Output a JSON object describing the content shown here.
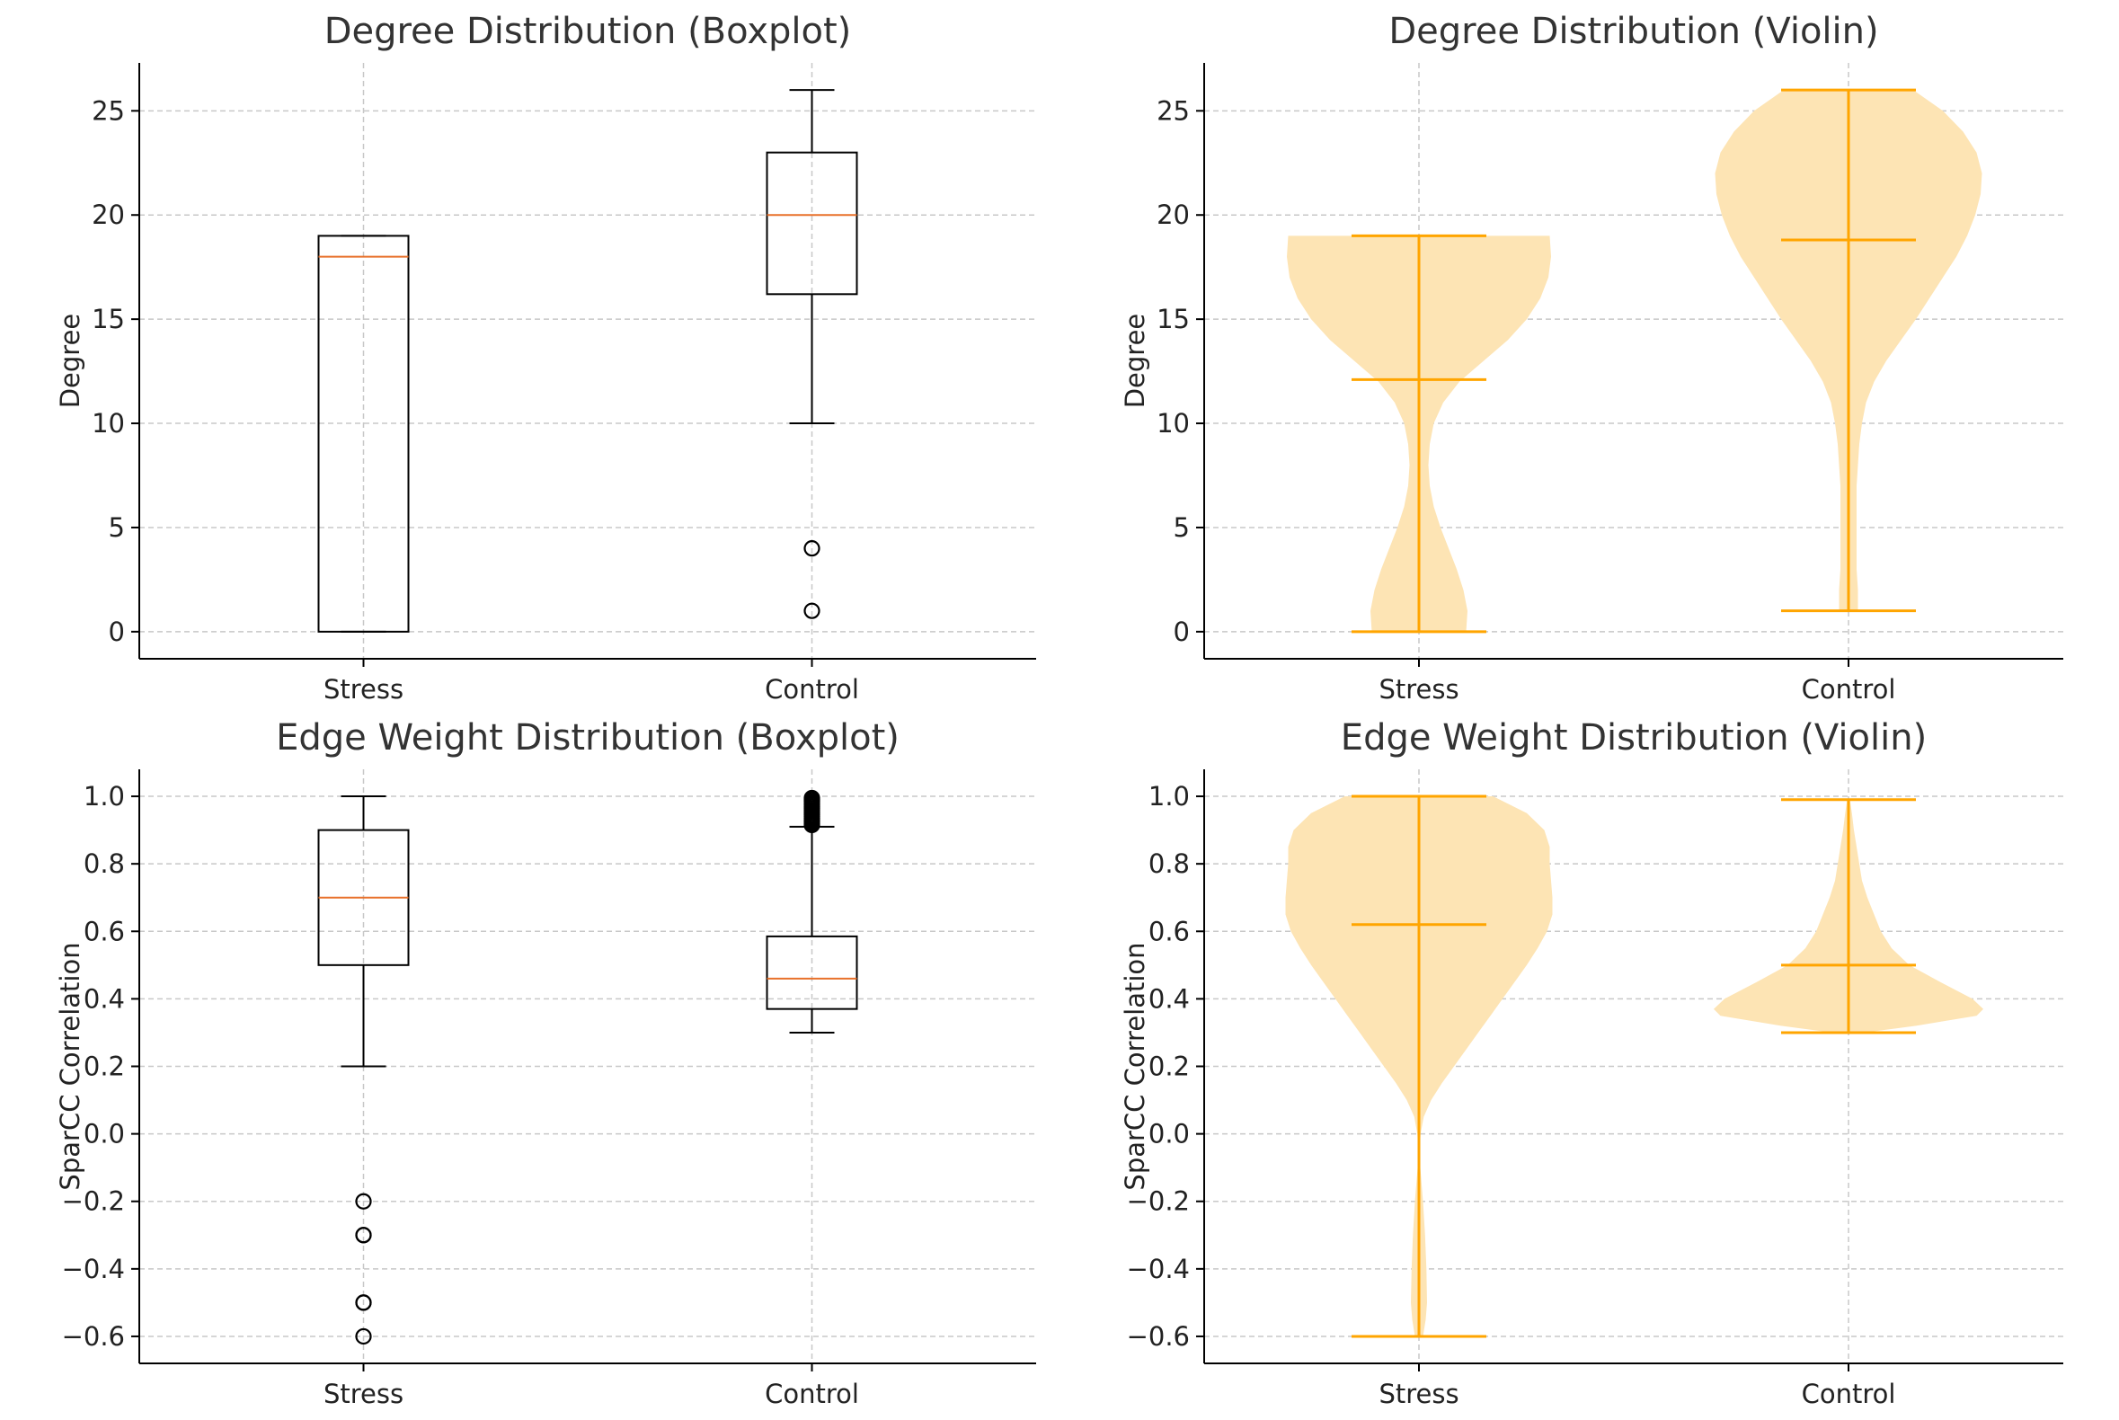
{
  "chart_data": [
    {
      "id": "deg-box",
      "type": "boxplot",
      "title": "Degree Distribution (Boxplot)",
      "ylabel": "Degree",
      "xlabel": "",
      "categories": [
        "Stress",
        "Control"
      ],
      "ylim": [
        -1.3,
        27.3
      ],
      "yticks": [
        0,
        5,
        10,
        15,
        20,
        25
      ],
      "grid": true,
      "boxes": [
        {
          "name": "Stress",
          "q1": 0,
          "median": 18,
          "q3": 19,
          "whisker_low": 0,
          "whisker_high": 19,
          "outliers": []
        },
        {
          "name": "Control",
          "q1": 16.2,
          "median": 20,
          "q3": 23,
          "whisker_low": 10,
          "whisker_high": 26,
          "outliers": [
            4,
            1
          ]
        }
      ],
      "colors": {
        "box": "#000000",
        "median": "#e8702a"
      }
    },
    {
      "id": "deg-violin",
      "type": "violin",
      "title": "Degree Distribution (Violin)",
      "ylabel": "Degree",
      "xlabel": "",
      "categories": [
        "Stress",
        "Control"
      ],
      "ylim": [
        -1.3,
        27.3
      ],
      "yticks": [
        0,
        5,
        10,
        15,
        20,
        25
      ],
      "grid": true,
      "violins": [
        {
          "name": "Stress",
          "min": 0,
          "max": 19,
          "mean": 12.1,
          "profile": [
            [
              0,
              0.35
            ],
            [
              1,
              0.36
            ],
            [
              2,
              0.33
            ],
            [
              3,
              0.28
            ],
            [
              4,
              0.22
            ],
            [
              5,
              0.16
            ],
            [
              6,
              0.11
            ],
            [
              7,
              0.08
            ],
            [
              8,
              0.07
            ],
            [
              9,
              0.08
            ],
            [
              10,
              0.11
            ],
            [
              11,
              0.18
            ],
            [
              12,
              0.3
            ],
            [
              13,
              0.48
            ],
            [
              14,
              0.66
            ],
            [
              15,
              0.8
            ],
            [
              16,
              0.9
            ],
            [
              17,
              0.96
            ],
            [
              18,
              0.98
            ],
            [
              19,
              0.97
            ]
          ]
        },
        {
          "name": "Control",
          "min": 1,
          "max": 26,
          "mean": 18.8,
          "profile": [
            [
              1,
              0.07
            ],
            [
              2,
              0.07
            ],
            [
              3,
              0.06
            ],
            [
              4,
              0.06
            ],
            [
              5,
              0.06
            ],
            [
              6,
              0.06
            ],
            [
              7,
              0.06
            ],
            [
              8,
              0.07
            ],
            [
              9,
              0.08
            ],
            [
              10,
              0.1
            ],
            [
              11,
              0.13
            ],
            [
              12,
              0.19
            ],
            [
              13,
              0.28
            ],
            [
              14,
              0.39
            ],
            [
              15,
              0.5
            ],
            [
              16,
              0.6
            ],
            [
              17,
              0.7
            ],
            [
              18,
              0.8
            ],
            [
              19,
              0.88
            ],
            [
              20,
              0.94
            ],
            [
              21,
              0.98
            ],
            [
              22,
              0.99
            ],
            [
              23,
              0.95
            ],
            [
              24,
              0.85
            ],
            [
              25,
              0.7
            ],
            [
              26,
              0.48
            ]
          ]
        }
      ],
      "colors": {
        "body": "#fde4b4",
        "line": "#ffa500"
      }
    },
    {
      "id": "ew-box",
      "type": "boxplot",
      "title": "Edge Weight Distribution (Boxplot)",
      "ylabel": "SparCC Correlation",
      "xlabel": "",
      "categories": [
        "Stress",
        "Control"
      ],
      "ylim": [
        -0.68,
        1.08
      ],
      "yticks": [
        1.0,
        0.8,
        0.6,
        0.4,
        0.2,
        0.0,
        -0.2,
        -0.4,
        -0.6
      ],
      "yticklabels": [
        "1.0",
        "0.8",
        "0.6",
        "0.4",
        "0.2",
        "0.0",
        "−0.2",
        "−0.4",
        "−0.6"
      ],
      "grid": true,
      "boxes": [
        {
          "name": "Stress",
          "q1": 0.5,
          "median": 0.7,
          "q3": 0.9,
          "whisker_low": 0.2,
          "whisker_high": 1.0,
          "outliers": [
            -0.2,
            -0.3,
            -0.3,
            -0.5,
            -0.5,
            -0.6
          ]
        },
        {
          "name": "Control",
          "q1": 0.37,
          "median": 0.46,
          "q3": 0.585,
          "whisker_low": 0.3,
          "whisker_high": 0.91,
          "outliers": [
            0.915,
            0.92,
            0.925,
            0.93,
            0.935,
            0.94,
            0.945,
            0.95,
            0.955,
            0.96,
            0.965,
            0.97,
            0.975,
            0.98,
            0.985,
            0.99,
            0.995
          ]
        }
      ],
      "colors": {
        "box": "#000000",
        "median": "#e8702a"
      }
    },
    {
      "id": "ew-violin",
      "type": "violin",
      "title": "Edge Weight Distribution (Violin)",
      "ylabel": "SparCC Correlation",
      "xlabel": "",
      "categories": [
        "Stress",
        "Control"
      ],
      "ylim": [
        -0.68,
        1.08
      ],
      "yticks": [
        1.0,
        0.8,
        0.6,
        0.4,
        0.2,
        0.0,
        -0.2,
        -0.4,
        -0.6
      ],
      "yticklabels": [
        "1.0",
        "0.8",
        "0.6",
        "0.4",
        "0.2",
        "0.0",
        "−0.2",
        "−0.4",
        "−0.6"
      ],
      "grid": true,
      "violins": [
        {
          "name": "Stress",
          "min": -0.6,
          "max": 1.0,
          "mean": 0.62,
          "profile": [
            [
              -0.6,
              0.03
            ],
            [
              -0.55,
              0.05
            ],
            [
              -0.5,
              0.06
            ],
            [
              -0.4,
              0.055
            ],
            [
              -0.3,
              0.045
            ],
            [
              -0.2,
              0.03
            ],
            [
              -0.1,
              0.01
            ],
            [
              -0.05,
              0.004
            ],
            [
              0.0,
              0.012
            ],
            [
              0.05,
              0.035
            ],
            [
              0.1,
              0.09
            ],
            [
              0.15,
              0.17
            ],
            [
              0.2,
              0.26
            ],
            [
              0.25,
              0.35
            ],
            [
              0.3,
              0.44
            ],
            [
              0.35,
              0.53
            ],
            [
              0.4,
              0.62
            ],
            [
              0.45,
              0.71
            ],
            [
              0.5,
              0.8
            ],
            [
              0.55,
              0.88
            ],
            [
              0.6,
              0.95
            ],
            [
              0.65,
              0.99
            ],
            [
              0.7,
              0.99
            ],
            [
              0.75,
              0.98
            ],
            [
              0.8,
              0.97
            ],
            [
              0.85,
              0.97
            ],
            [
              0.9,
              0.93
            ],
            [
              0.95,
              0.8
            ],
            [
              1.0,
              0.55
            ]
          ]
        },
        {
          "name": "Control",
          "min": 0.3,
          "max": 0.99,
          "mean": 0.5,
          "profile": [
            [
              0.3,
              0.12
            ],
            [
              0.32,
              0.5
            ],
            [
              0.35,
              0.95
            ],
            [
              0.37,
              1.0
            ],
            [
              0.4,
              0.92
            ],
            [
              0.45,
              0.68
            ],
            [
              0.5,
              0.45
            ],
            [
              0.55,
              0.32
            ],
            [
              0.6,
              0.24
            ],
            [
              0.65,
              0.19
            ],
            [
              0.7,
              0.14
            ],
            [
              0.75,
              0.1
            ],
            [
              0.8,
              0.08
            ],
            [
              0.85,
              0.06
            ],
            [
              0.9,
              0.04
            ],
            [
              0.95,
              0.025
            ],
            [
              0.99,
              0.01
            ]
          ]
        }
      ],
      "colors": {
        "body": "#fde4b4",
        "line": "#ffa500"
      }
    }
  ]
}
